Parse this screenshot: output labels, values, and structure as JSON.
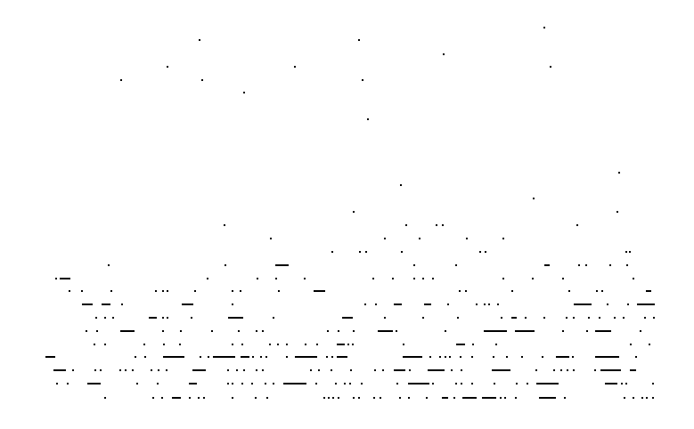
{
  "scene": {
    "description_visible_text": "",
    "background_color": "#ffffff",
    "dot_color": "#000000"
  }
}
